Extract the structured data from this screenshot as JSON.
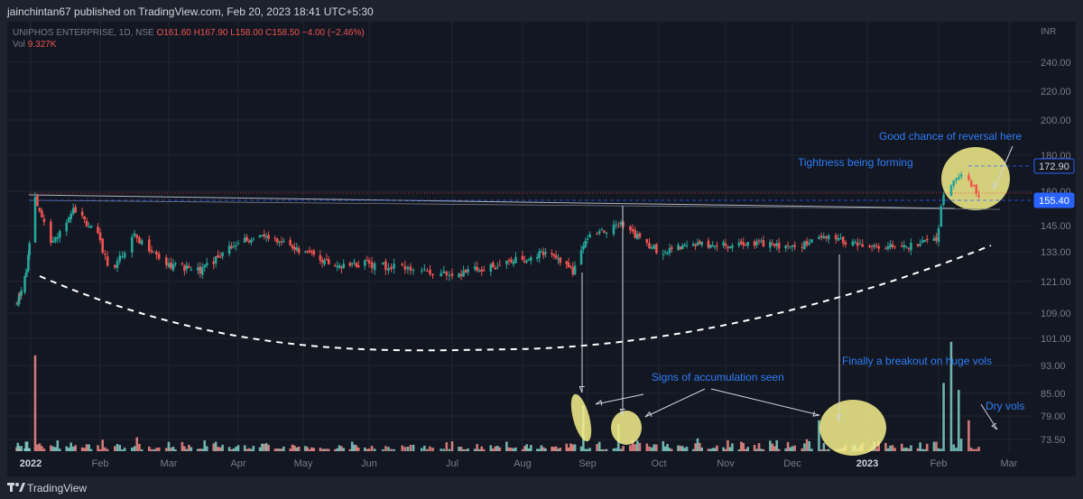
{
  "header": {
    "published": "jainchintan67 published on TradingView.com, Feb 20, 2023 18:41 UTC+5:30"
  },
  "legend": {
    "symbol": "UNIPHOS ENTERPRISE, 1D, NSE",
    "open": "O161.60",
    "high": "H167.90",
    "low": "L158.00",
    "close": "C158.50",
    "change": "−4.00 (−2.46%)",
    "vol_label": "Vol",
    "vol_value": "9.327K"
  },
  "footer": {
    "brand": "TradingView"
  },
  "colors": {
    "up": "#26a69a",
    "down": "#ef5350",
    "vol_up": "#7fcfc6",
    "vol_down": "#f28b86",
    "annotation": "#2f7df6",
    "highlight": "#f7f08a",
    "price_tag": "#2962ff",
    "background": "#131722"
  },
  "chart_data": {
    "type": "candlestick",
    "currency": "INR",
    "y_ticks": [
      240,
      220,
      200,
      180,
      160,
      145,
      133,
      121,
      109,
      101,
      93,
      85,
      79,
      73.5
    ],
    "y_tick_labels": [
      "240.00",
      "220.00",
      "200.00",
      "180.00",
      "160.00",
      "145.00",
      "133.00",
      "121.00",
      "109.00",
      "101.00",
      "93.00",
      "85.00",
      "79.00",
      "73.50"
    ],
    "x_ticks": [
      {
        "label": "2022",
        "date": "2022-01-01",
        "bold": true
      },
      {
        "label": "Feb",
        "date": "2022-02-01"
      },
      {
        "label": "Mar",
        "date": "2022-03-01"
      },
      {
        "label": "Apr",
        "date": "2022-04-01"
      },
      {
        "label": "May",
        "date": "2022-05-01"
      },
      {
        "label": "Jun",
        "date": "2022-06-01"
      },
      {
        "label": "Jul",
        "date": "2022-07-01"
      },
      {
        "label": "Aug",
        "date": "2022-08-01"
      },
      {
        "label": "Sep",
        "date": "2022-09-01"
      },
      {
        "label": "Oct",
        "date": "2022-10-01"
      },
      {
        "label": "Nov",
        "date": "2022-11-01"
      },
      {
        "label": "Dec",
        "date": "2022-12-01"
      },
      {
        "label": "2023",
        "date": "2023-01-01",
        "bold": true
      },
      {
        "label": "Feb",
        "date": "2023-02-01"
      },
      {
        "label": "Mar",
        "date": "2023-03-01"
      }
    ],
    "price_labels": [
      {
        "value": 172.9,
        "label": "172.90",
        "style": "outline"
      },
      {
        "value": 155.4,
        "label": "155.40",
        "style": "filled"
      }
    ],
    "candles_approx": [
      {
        "date": "2021-12-20",
        "close": 112
      },
      {
        "date": "2021-12-29",
        "close": 125
      },
      {
        "date": "2022-01-03",
        "close": 157
      },
      {
        "date": "2022-01-10",
        "close": 136
      },
      {
        "date": "2022-01-20",
        "close": 153
      },
      {
        "date": "2022-01-31",
        "close": 140
      },
      {
        "date": "2022-02-05",
        "close": 125
      },
      {
        "date": "2022-02-15",
        "close": 140
      },
      {
        "date": "2022-03-01",
        "close": 128
      },
      {
        "date": "2022-03-15",
        "close": 125
      },
      {
        "date": "2022-04-01",
        "close": 138
      },
      {
        "date": "2022-04-15",
        "close": 140
      },
      {
        "date": "2022-05-01",
        "close": 133
      },
      {
        "date": "2022-05-15",
        "close": 128
      },
      {
        "date": "2022-06-01",
        "close": 128
      },
      {
        "date": "2022-06-15",
        "close": 126
      },
      {
        "date": "2022-07-01",
        "close": 124
      },
      {
        "date": "2022-07-15",
        "close": 126
      },
      {
        "date": "2022-08-01",
        "close": 130
      },
      {
        "date": "2022-08-15",
        "close": 133
      },
      {
        "date": "2022-08-25",
        "close": 125
      },
      {
        "date": "2022-09-01",
        "close": 140
      },
      {
        "date": "2022-09-15",
        "close": 145
      },
      {
        "date": "2022-10-01",
        "close": 133
      },
      {
        "date": "2022-10-15",
        "close": 136
      },
      {
        "date": "2022-11-01",
        "close": 136
      },
      {
        "date": "2022-11-15",
        "close": 137
      },
      {
        "date": "2022-12-01",
        "close": 135
      },
      {
        "date": "2022-12-15",
        "close": 140
      },
      {
        "date": "2023-01-01",
        "close": 135
      },
      {
        "date": "2023-01-15",
        "close": 135
      },
      {
        "date": "2023-01-31",
        "close": 138
      },
      {
        "date": "2023-02-03",
        "close": 160
      },
      {
        "date": "2023-02-10",
        "close": 170
      },
      {
        "date": "2023-02-17",
        "close": 158.5
      }
    ],
    "annotations": [
      "Good chance of reversal here",
      "Tightness being forming",
      "Signs of accumulation seen",
      "Finally a breakout on huge vols",
      "Dry vols"
    ]
  }
}
